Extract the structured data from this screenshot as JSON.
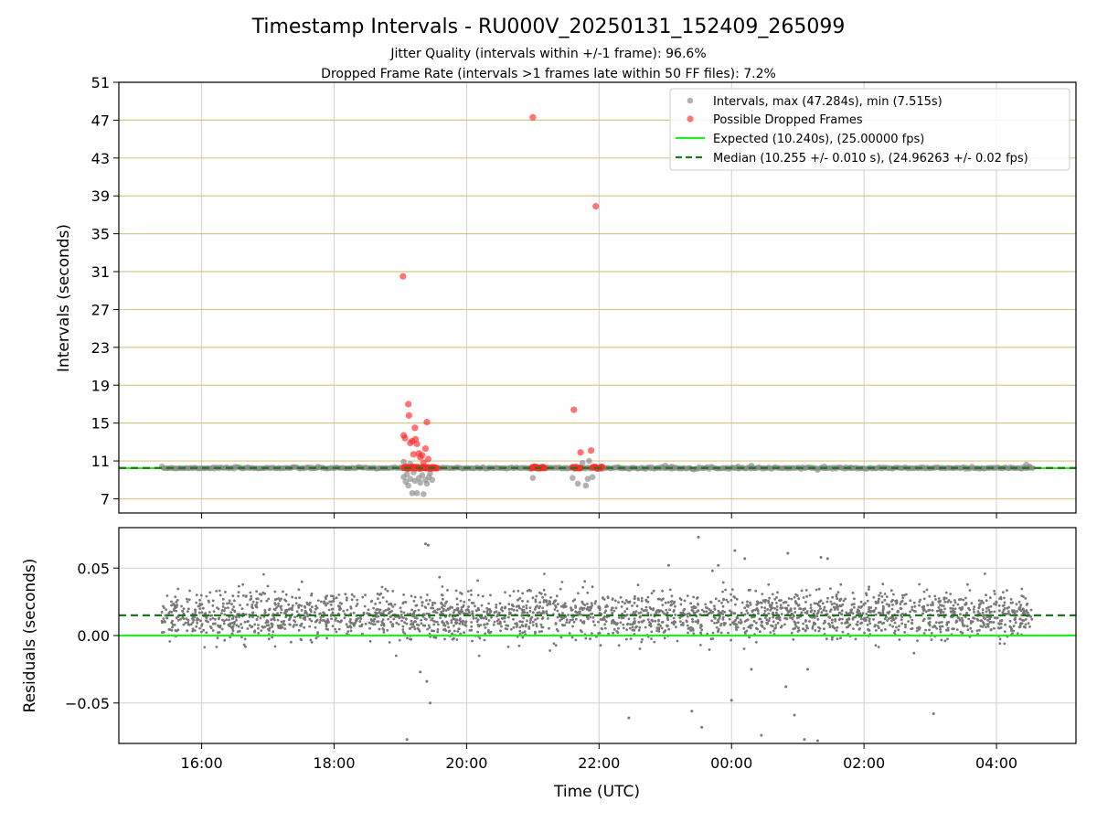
{
  "chart_data": {
    "type": "scatter",
    "title": "Timestamp Intervals - RU000V_20250131_152409_265099",
    "subtitle_lines": [
      "Jitter Quality (intervals within +/-1 frame): 96.6%",
      "Dropped Frame Rate (intervals >1 frames late within 50 FF files): 7.2%"
    ],
    "x_label": "Time (UTC)",
    "x_ticks": [
      "16:00",
      "18:00",
      "20:00",
      "22:00",
      "00:00",
      "02:00",
      "04:00"
    ],
    "x_tick_hours": [
      16,
      18,
      20,
      22,
      24,
      26,
      28
    ],
    "x_range_hours": [
      14.75,
      29.2
    ],
    "data_time_range_hours": [
      15.4,
      28.55
    ],
    "top_panel": {
      "y_label": "Intervals (seconds)",
      "y_ticks": [
        7,
        11,
        15,
        19,
        23,
        27,
        31,
        35,
        39,
        43,
        47,
        51
      ],
      "ylim": [
        5.5,
        51
      ],
      "horizontal_grid_color": "#d4c88a",
      "expected_value": 10.24,
      "median_value": 10.255,
      "legend": {
        "position": "top-right",
        "entries": [
          "Intervals, max (47.284s), min (7.515s)",
          "Possible Dropped Frames",
          "Expected (10.240s), (25.00000 fps)",
          "Median (10.255 +/- 0.010 s), (24.96263 +/- 0.02 fps)"
        ]
      },
      "series": [
        {
          "legend_index": 0,
          "color": "#888888",
          "points": [
            [
              19.05,
              9.3
            ],
            [
              19.08,
              8.8
            ],
            [
              19.1,
              9.6
            ],
            [
              19.12,
              8.4
            ],
            [
              19.15,
              9.1
            ],
            [
              19.18,
              7.6
            ],
            [
              19.2,
              9.8
            ],
            [
              19.22,
              8.9
            ],
            [
              19.25,
              7.6
            ],
            [
              19.28,
              9.2
            ],
            [
              19.3,
              8.7
            ],
            [
              19.33,
              9.5
            ],
            [
              19.35,
              7.5
            ],
            [
              19.38,
              9.0
            ],
            [
              19.4,
              8.6
            ],
            [
              19.43,
              9.3
            ],
            [
              19.45,
              9.7
            ],
            [
              19.48,
              9.0
            ],
            [
              19.05,
              10.9
            ],
            [
              19.15,
              10.7
            ],
            [
              21.0,
              9.2
            ],
            [
              21.1,
              10.3
            ],
            [
              21.15,
              10.3
            ],
            [
              21.6,
              9.2
            ],
            [
              21.68,
              8.6
            ],
            [
              21.8,
              8.4
            ],
            [
              21.83,
              9.1
            ],
            [
              21.9,
              9.3
            ],
            [
              21.75,
              10.8
            ],
            [
              21.85,
              11.0
            ],
            [
              22.3,
              10.3
            ],
            [
              23.0,
              10.5
            ],
            [
              23.1,
              10.4
            ],
            [
              24.1,
              10.4
            ],
            [
              24.3,
              10.5
            ],
            [
              25.4,
              10.4
            ],
            [
              25.8,
              10.3
            ],
            [
              28.45,
              10.6
            ],
            [
              28.5,
              10.4
            ]
          ]
        },
        {
          "legend_index": 1,
          "color": "#ff2a2a",
          "points": [
            [
              19.04,
              30.5
            ],
            [
              19.05,
              13.7
            ],
            [
              19.07,
              13.4
            ],
            [
              19.12,
              17.0
            ],
            [
              19.13,
              15.8
            ],
            [
              19.15,
              12.9
            ],
            [
              19.18,
              13.1
            ],
            [
              19.2,
              11.7
            ],
            [
              19.22,
              14.5
            ],
            [
              19.23,
              13.3
            ],
            [
              19.25,
              12.8
            ],
            [
              19.28,
              11.8
            ],
            [
              19.3,
              11.4
            ],
            [
              19.33,
              11.6
            ],
            [
              19.35,
              10.8
            ],
            [
              19.38,
              12.3
            ],
            [
              19.4,
              15.1
            ],
            [
              19.42,
              11.2
            ],
            [
              21.0,
              47.3
            ],
            [
              21.62,
              16.4
            ],
            [
              21.72,
              11.9
            ],
            [
              21.88,
              12.1
            ],
            [
              21.95,
              37.9
            ]
          ]
        }
      ]
    },
    "bottom_panel": {
      "y_label": "Residuals (seconds)",
      "y_ticks": [
        "0.05",
        "0.00",
        "−0.05"
      ],
      "y_tick_values": [
        0.05,
        0.0,
        -0.05
      ],
      "ylim": [
        -0.08,
        0.08
      ],
      "expected_value": 0.0,
      "median_value": 0.015,
      "point_color": "#777777",
      "outliers": [
        [
          19.1,
          -0.077
        ],
        [
          19.3,
          -0.027
        ],
        [
          19.38,
          0.068
        ],
        [
          19.42,
          0.067
        ],
        [
          19.4,
          -0.034
        ],
        [
          19.45,
          -0.05
        ],
        [
          22.45,
          -0.061
        ],
        [
          23.05,
          0.052
        ],
        [
          23.4,
          -0.056
        ],
        [
          23.55,
          -0.068
        ],
        [
          23.5,
          0.073
        ],
        [
          23.8,
          0.052
        ],
        [
          24.05,
          0.063
        ],
        [
          24.0,
          -0.048
        ],
        [
          24.2,
          0.057
        ],
        [
          24.3,
          -0.025
        ],
        [
          24.45,
          -0.074
        ],
        [
          24.85,
          0.061
        ],
        [
          24.82,
          -0.038
        ],
        [
          24.95,
          -0.059
        ],
        [
          25.1,
          -0.077
        ],
        [
          25.15,
          -0.025
        ],
        [
          25.3,
          -0.078
        ],
        [
          25.35,
          0.058
        ],
        [
          25.45,
          0.057
        ],
        [
          27.05,
          -0.058
        ]
      ]
    }
  }
}
